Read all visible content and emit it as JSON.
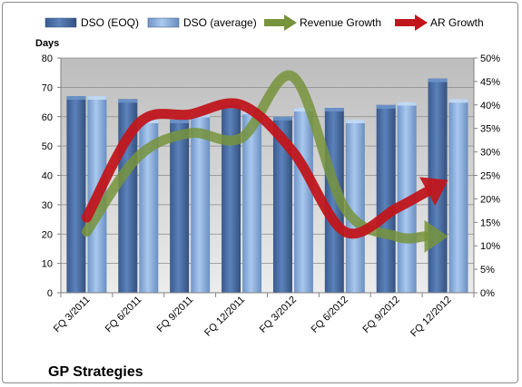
{
  "chart_data": {
    "type": "bar",
    "title": "GP Strategies",
    "ylabel": "Days",
    "ylim": [
      0,
      80
    ],
    "y2lim": [
      0,
      0.5
    ],
    "yticks": [
      "0",
      "10",
      "20",
      "30",
      "40",
      "50",
      "60",
      "70",
      "80"
    ],
    "y2ticks": [
      "0%",
      "5%",
      "10%",
      "15%",
      "20%",
      "25%",
      "30%",
      "35%",
      "40%",
      "45%",
      "50%"
    ],
    "categories": [
      "FQ 3/2011",
      "FQ 6/2011",
      "FQ 9/2011",
      "FQ 12/2011",
      "FQ 3/2012",
      "FQ 6/2012",
      "FQ 9/2012",
      "FQ 12/2012"
    ],
    "series": [
      {
        "name": "DSO (EOQ)",
        "kind": "bar",
        "axis": "left",
        "color": "#4a6fa5",
        "values": [
          67,
          66,
          59,
          64,
          60,
          63,
          64,
          73
        ]
      },
      {
        "name": "DSO (average)",
        "kind": "bar",
        "axis": "left",
        "color": "#8db3e2",
        "values": [
          67,
          59,
          61,
          62,
          63,
          59,
          65,
          66
        ]
      },
      {
        "name": "Revenue Growth",
        "kind": "line",
        "axis": "right",
        "color": "#77933c",
        "values": [
          0.13,
          0.29,
          0.34,
          0.33,
          0.46,
          0.18,
          0.12,
          0.12
        ]
      },
      {
        "name": "AR Growth",
        "kind": "line",
        "axis": "right",
        "color": "#c0161c",
        "values": [
          0.16,
          0.36,
          0.38,
          0.4,
          0.3,
          0.13,
          0.18,
          0.24
        ]
      }
    ],
    "legend": "top",
    "grid": true
  }
}
